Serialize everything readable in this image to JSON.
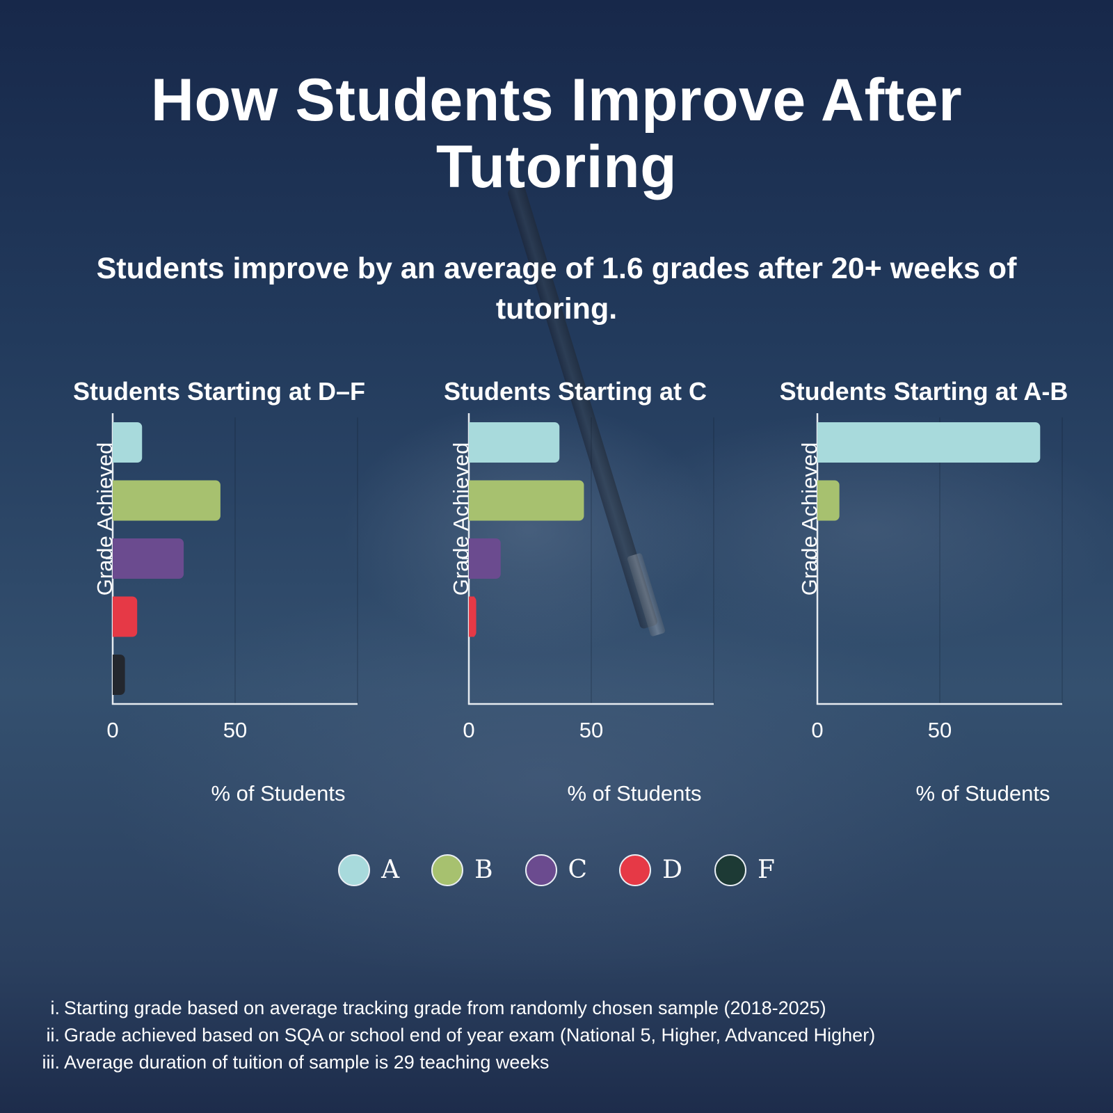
{
  "title": "How Students Improve After Tutoring",
  "subtitle": "Students improve by an average of 1.6 grades after 20+ weeks of tutoring.",
  "colors": {
    "A": "#a8dadc",
    "B": "#a7c16f",
    "C": "#6b4b8f",
    "D": "#e63946",
    "F": "#1d3a35",
    "F_bar": "#23272e"
  },
  "legend": [
    {
      "label": "A",
      "color": "#a8dadc"
    },
    {
      "label": "B",
      "color": "#a7c16f"
    },
    {
      "label": "C",
      "color": "#6b4b8f"
    },
    {
      "label": "D",
      "color": "#e63946"
    },
    {
      "label": "F",
      "color": "#1d3a35"
    }
  ],
  "chart_data": [
    {
      "type": "bar",
      "orientation": "horizontal",
      "title": "Students Starting at D–F",
      "xlabel": "% of Students",
      "ylabel": "Grade Achieved",
      "xlim": [
        0,
        100
      ],
      "xticks": [
        0,
        50
      ],
      "categories": [
        "A",
        "B",
        "C",
        "D",
        "F"
      ],
      "values": [
        12,
        44,
        29,
        10,
        5
      ]
    },
    {
      "type": "bar",
      "orientation": "horizontal",
      "title": "Students Starting at C",
      "xlabel": "% of Students",
      "ylabel": "Grade Achieved",
      "xlim": [
        0,
        100
      ],
      "xticks": [
        0,
        50
      ],
      "categories": [
        "A",
        "B",
        "C",
        "D",
        "F"
      ],
      "values": [
        37,
        47,
        13,
        3,
        0
      ]
    },
    {
      "type": "bar",
      "orientation": "horizontal",
      "title": "Students Starting at A-B",
      "xlabel": "% of Students",
      "ylabel": "Grade Achieved",
      "xlim": [
        0,
        100
      ],
      "xticks": [
        0,
        50
      ],
      "categories": [
        "A",
        "B",
        "C",
        "D",
        "F"
      ],
      "values": [
        91,
        9,
        0,
        0,
        0
      ]
    }
  ],
  "footnotes": [
    {
      "num": "i.",
      "text": "Starting grade based on average tracking grade from randomly chosen sample (2018-2025)"
    },
    {
      "num": "ii.",
      "text": "Grade achieved based on SQA or school end of year exam (National 5, Higher, Advanced Higher)"
    },
    {
      "num": "iii.",
      "text": "Average duration of tuition of sample is 29 teaching weeks"
    }
  ]
}
